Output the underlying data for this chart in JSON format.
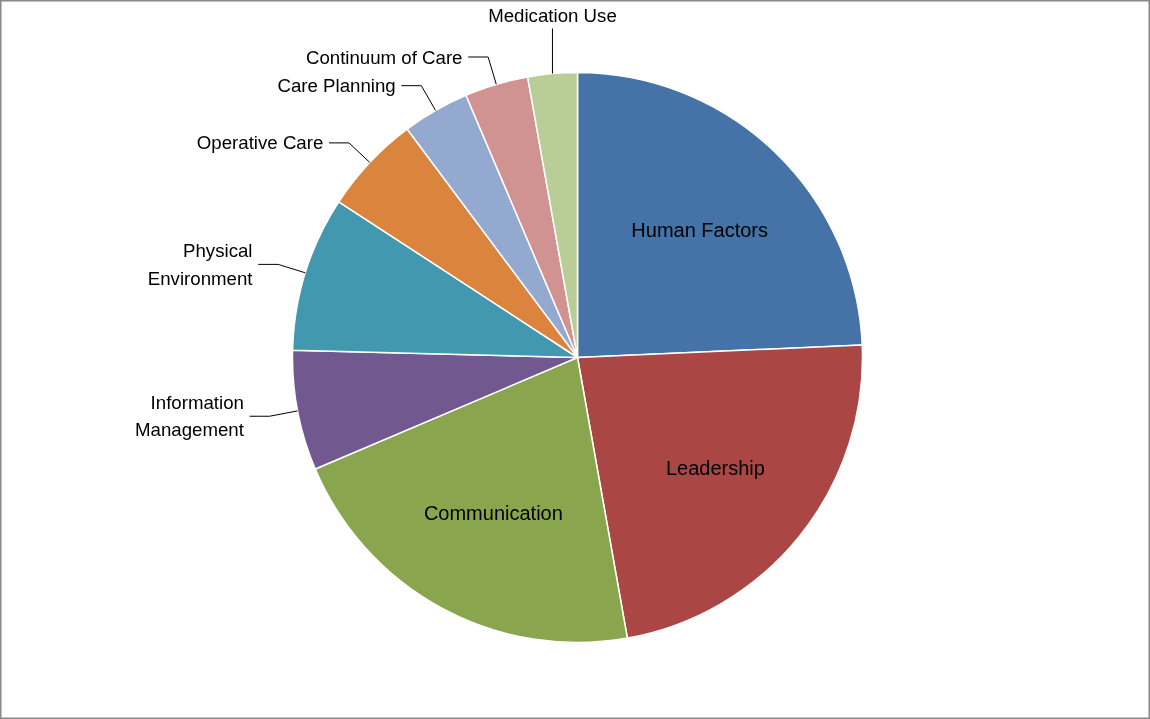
{
  "chart_data": {
    "type": "pie",
    "categories": [
      "Human Factors",
      "Leadership",
      "Communication",
      "Information Management",
      "Physical Environment",
      "Operative Care",
      "Care Planning",
      "Continuum of Care",
      "Medication Use"
    ],
    "values": [
      24.3,
      22.9,
      21.4,
      6.8,
      8.8,
      5.6,
      3.8,
      3.6,
      2.8
    ],
    "colors": [
      "#4572a7",
      "#aa4643",
      "#89a54e",
      "#71588f",
      "#4198af",
      "#db843d",
      "#93a9cf",
      "#d19392",
      "#b9cd96"
    ]
  }
}
